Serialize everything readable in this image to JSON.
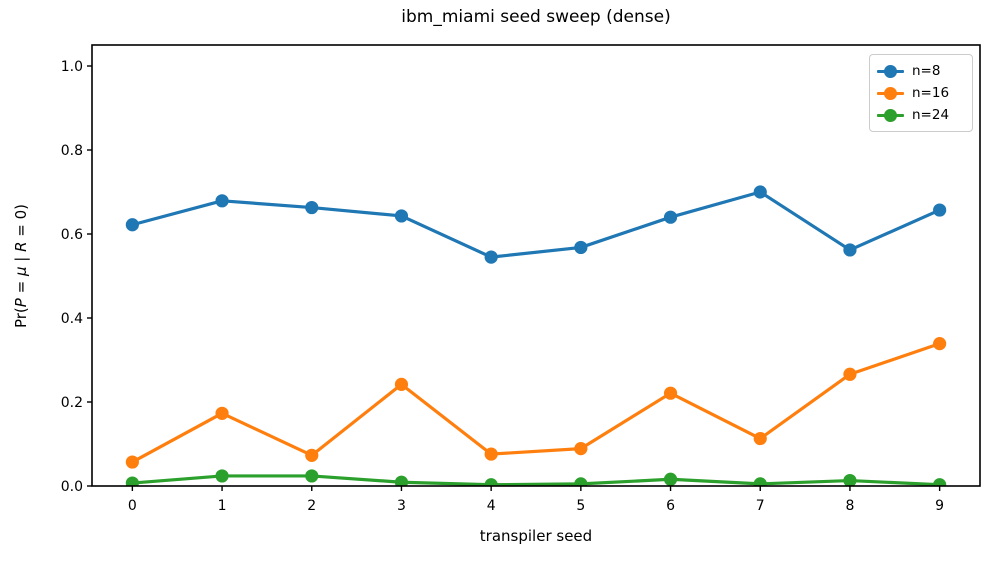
{
  "chart_data": {
    "type": "line",
    "title": "ibm_miami seed sweep (dense)",
    "xlabel": "transpiler seed",
    "ylabel": "Pr(P = μ | R = 0)",
    "ylabel_parts": [
      {
        "text": "Pr(",
        "italic": false
      },
      {
        "text": "P",
        "italic": true
      },
      {
        "text": " = ",
        "italic": false
      },
      {
        "text": "μ",
        "italic": true
      },
      {
        "text": " | ",
        "italic": false
      },
      {
        "text": "R",
        "italic": true
      },
      {
        "text": " = 0)",
        "italic": false
      }
    ],
    "x": [
      0,
      1,
      2,
      3,
      4,
      5,
      6,
      7,
      8,
      9
    ],
    "xticks": [
      "0",
      "1",
      "2",
      "3",
      "4",
      "5",
      "6",
      "7",
      "8",
      "9"
    ],
    "yticks": [
      "0.0",
      "0.2",
      "0.4",
      "0.6",
      "0.8",
      "1.0"
    ],
    "xlim": [
      -0.45,
      9.45
    ],
    "ylim": [
      0,
      1.05
    ],
    "grid": false,
    "legend_position": "upper right",
    "series": [
      {
        "name": "n=8",
        "color": "#1f77b4",
        "values": [
          0.622,
          0.679,
          0.663,
          0.643,
          0.545,
          0.568,
          0.64,
          0.7,
          0.562,
          0.657
        ]
      },
      {
        "name": "n=16",
        "color": "#ff7f0e",
        "values": [
          0.057,
          0.173,
          0.073,
          0.242,
          0.076,
          0.089,
          0.221,
          0.113,
          0.266,
          0.339
        ]
      },
      {
        "name": "n=24",
        "color": "#2ca02c",
        "values": [
          0.007,
          0.024,
          0.024,
          0.009,
          0.003,
          0.005,
          0.016,
          0.005,
          0.013,
          0.003
        ]
      }
    ]
  }
}
